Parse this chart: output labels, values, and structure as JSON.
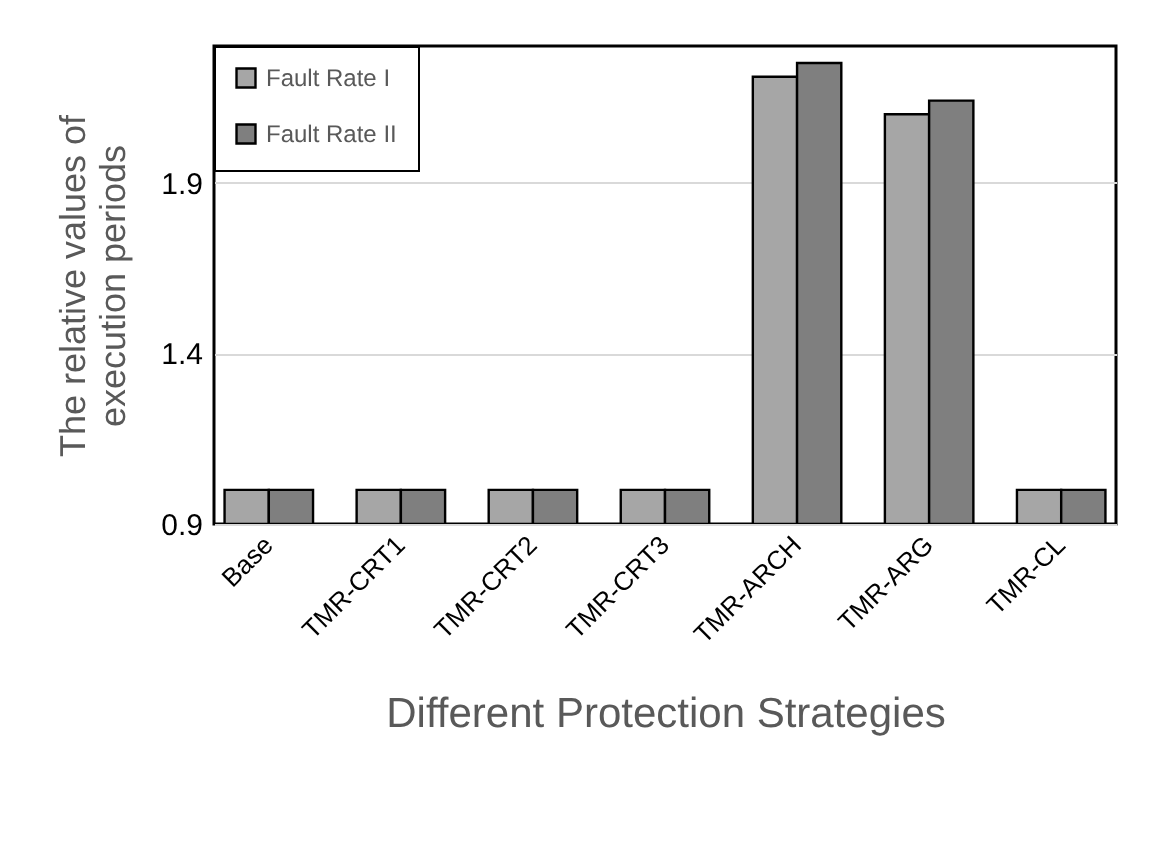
{
  "chart_data": {
    "type": "bar",
    "xlabel": "Different Protection Strategies",
    "ylabel": "The relative values of execution periods",
    "categories": [
      "Base",
      "TMR-CRT1",
      "TMR-CRT2",
      "TMR-CRT3",
      "TMR-ARCH",
      "TMR-ARG",
      "TMR-CL"
    ],
    "series": [
      {
        "name": "Fault Rate I",
        "color": "#a6a6a6",
        "values": [
          1.0,
          1.0,
          1.0,
          1.0,
          2.21,
          2.1,
          1.0
        ]
      },
      {
        "name": "Fault Rate II",
        "color": "#7f7f7f",
        "values": [
          1.0,
          1.0,
          1.0,
          1.0,
          2.25,
          2.14,
          1.0
        ]
      }
    ],
    "ylim": [
      0.9,
      2.3
    ],
    "yticks": [
      0.9,
      1.4,
      1.9
    ],
    "grid": "y",
    "legend": "top left"
  }
}
